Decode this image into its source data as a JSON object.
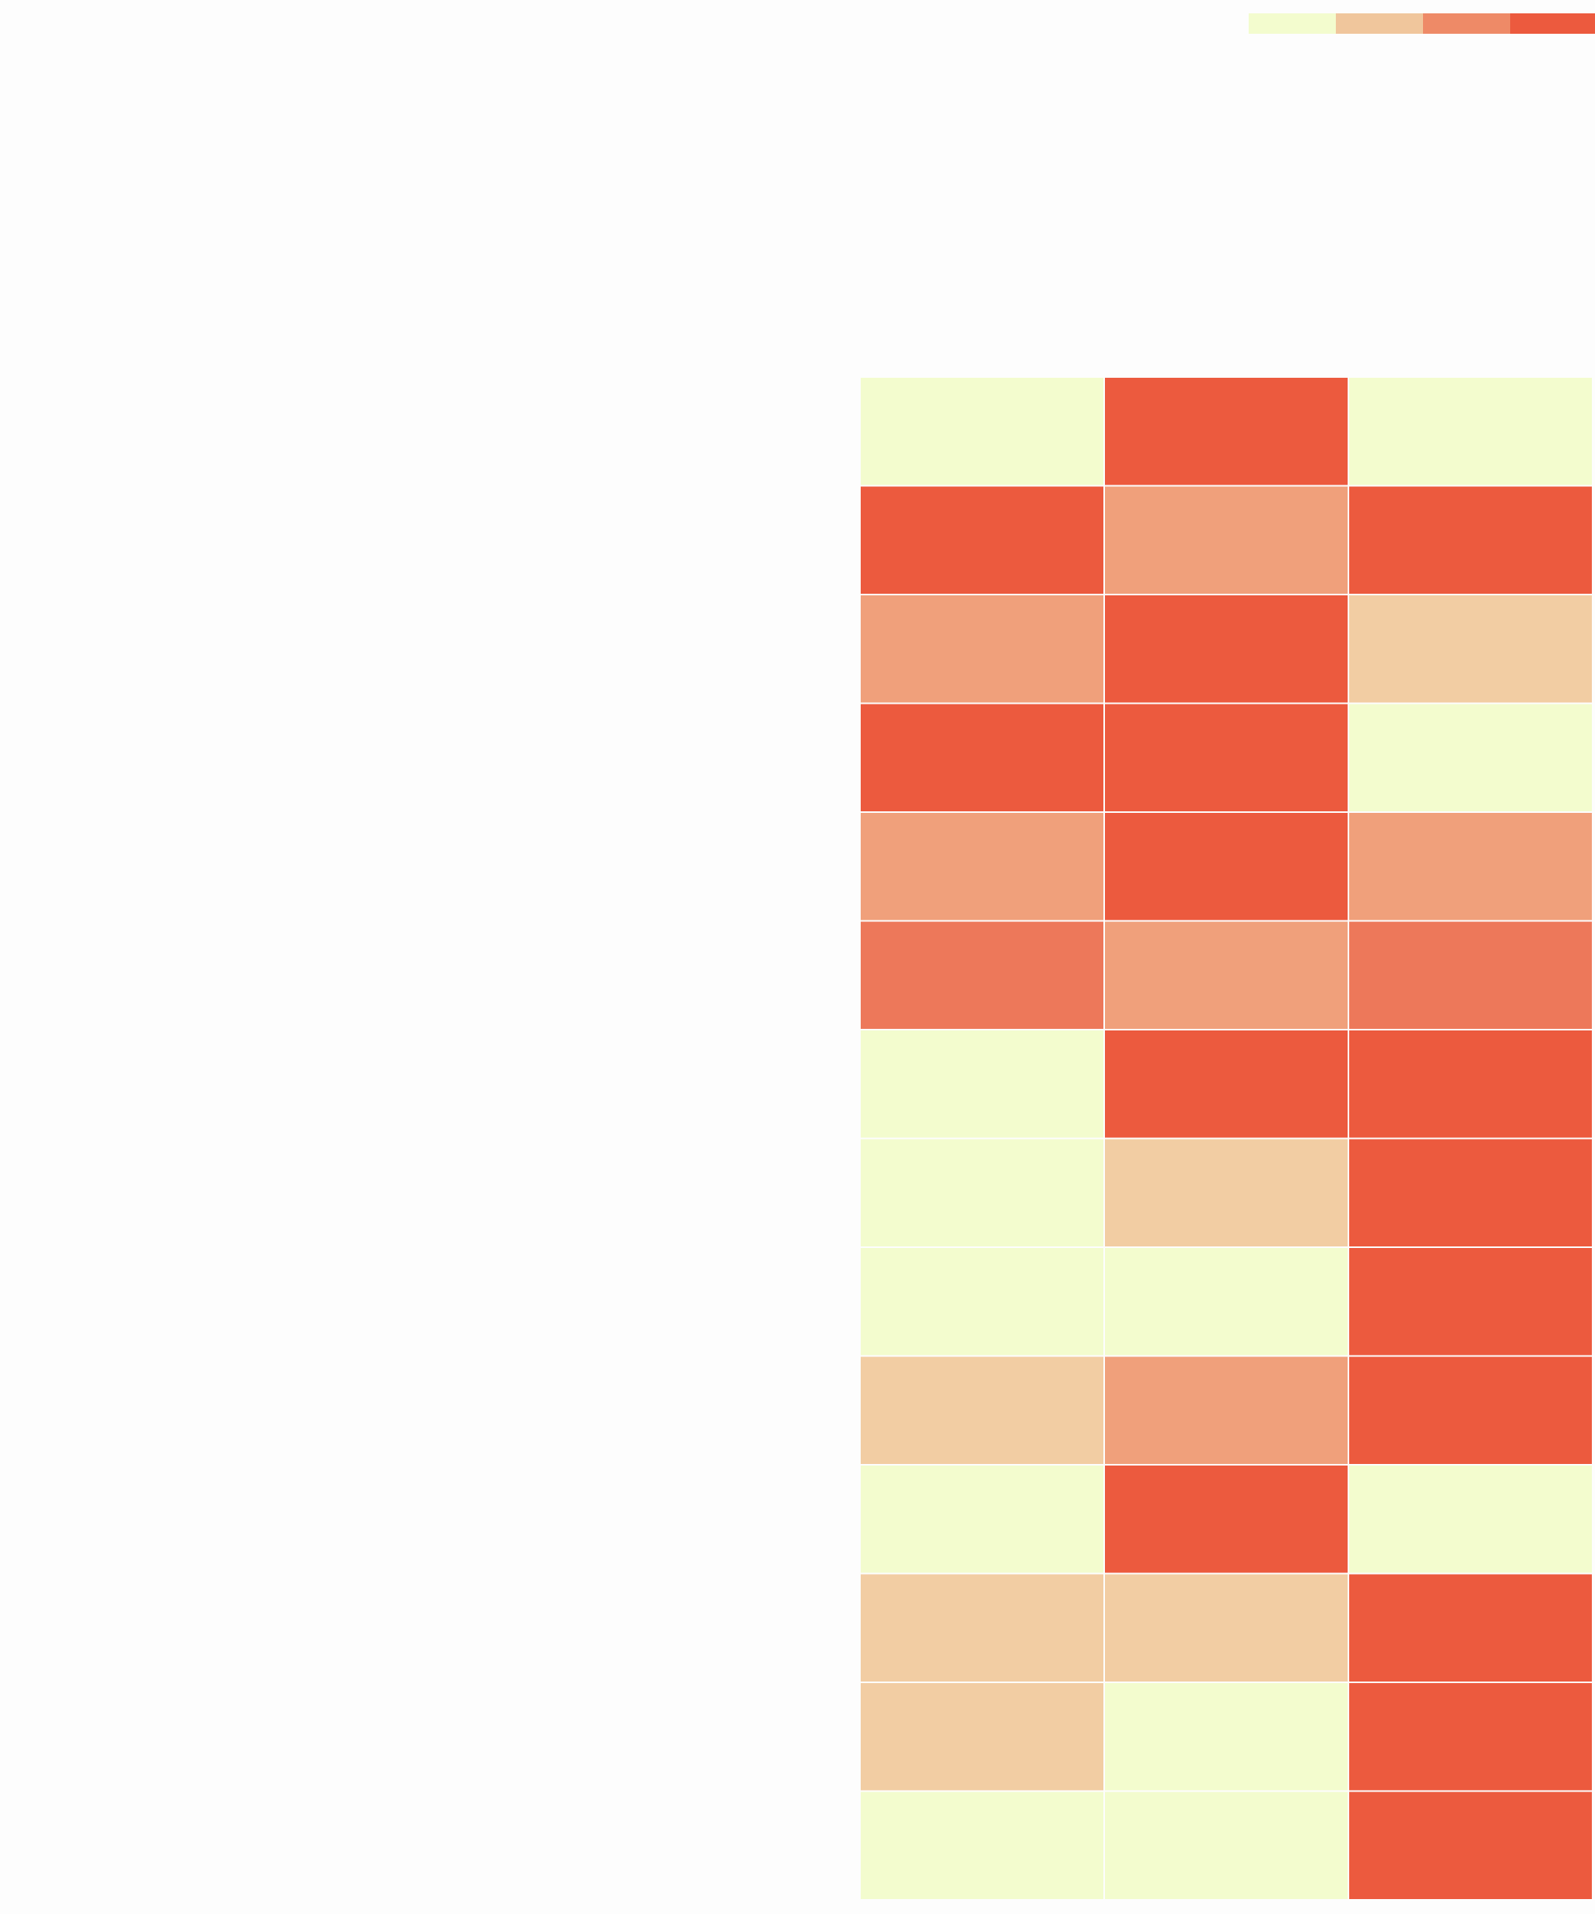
{
  "chart_data": {
    "type": "heatmap",
    "title": "",
    "xlabel": "",
    "ylabel": "",
    "columns": 3,
    "rows": 14,
    "legend_position": "top-right",
    "legend_levels": [
      0,
      1,
      2,
      3
    ],
    "colors": [
      "#f3fcce",
      "#f0c69c",
      "#ee8a67",
      "#ec5a3e"
    ],
    "cell_colors": [
      "#f3fcce",
      "#f2cda3",
      "#f0a07b",
      "#ed785a",
      "#ec5a3e"
    ],
    "values": [
      [
        0,
        4,
        0
      ],
      [
        4,
        2,
        4
      ],
      [
        2,
        4,
        1
      ],
      [
        4,
        4,
        0
      ],
      [
        2,
        4,
        2
      ],
      [
        3,
        2,
        3
      ],
      [
        0,
        4,
        4
      ],
      [
        0,
        1,
        4
      ],
      [
        0,
        0,
        4
      ],
      [
        1,
        2,
        4
      ],
      [
        0,
        4,
        0
      ],
      [
        1,
        1,
        4
      ],
      [
        1,
        0,
        4
      ],
      [
        0,
        0,
        4
      ]
    ]
  }
}
